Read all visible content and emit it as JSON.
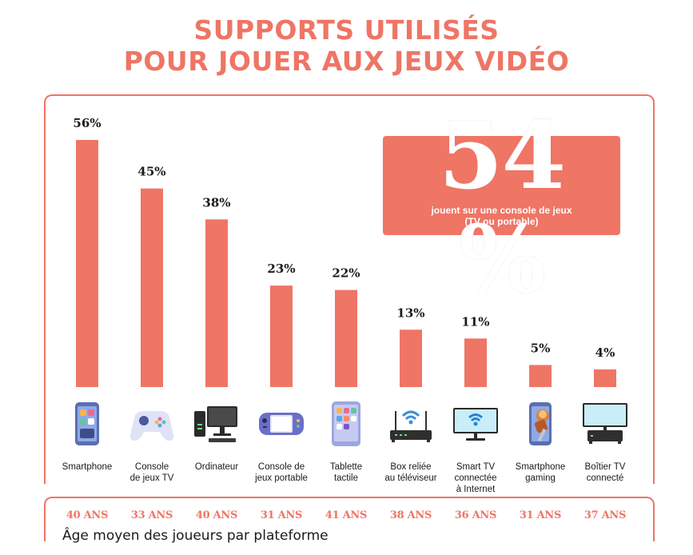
{
  "title_line1": "SUPPORTS UTILISÉS",
  "title_line2": "POUR JOUER AUX JEUX VIDÉO",
  "callout": {
    "value": "54 %",
    "text_line1": "jouent sur une console de jeux",
    "text_line2": "(TV ou portable)"
  },
  "footnote": "Âge moyen des joueurs par plateforme",
  "colors": {
    "accent": "#ef7565"
  },
  "chart_data": {
    "type": "bar",
    "categories": [
      "Smartphone",
      "Console\nde jeux TV",
      "Ordinateur",
      "Console de\njeux portable",
      "Tablette\ntactile",
      "Box reliée\nau téléviseur",
      "Smart TV\nconnectée\nà Internet",
      "Smartphone\ngaming",
      "Boîtier TV\nconnecté"
    ],
    "values": [
      56,
      45,
      38,
      23,
      22,
      13,
      11,
      5,
      4
    ],
    "value_labels": [
      "56%",
      "45%",
      "38%",
      "23%",
      "22%",
      "13%",
      "11%",
      "5%",
      "4%"
    ],
    "ages": [
      "40 ANS",
      "33 ANS",
      "40 ANS",
      "31 ANS",
      "41 ANS",
      "38 ANS",
      "36 ANS",
      "31 ANS",
      "37 ANS"
    ],
    "icons": [
      "smartphone-icon",
      "gamepad-icon",
      "desktop-computer-icon",
      "handheld-console-icon",
      "tablet-icon",
      "wifi-router-icon",
      "smart-tv-icon",
      "gaming-phone-icon",
      "tv-box-icon"
    ]
  }
}
